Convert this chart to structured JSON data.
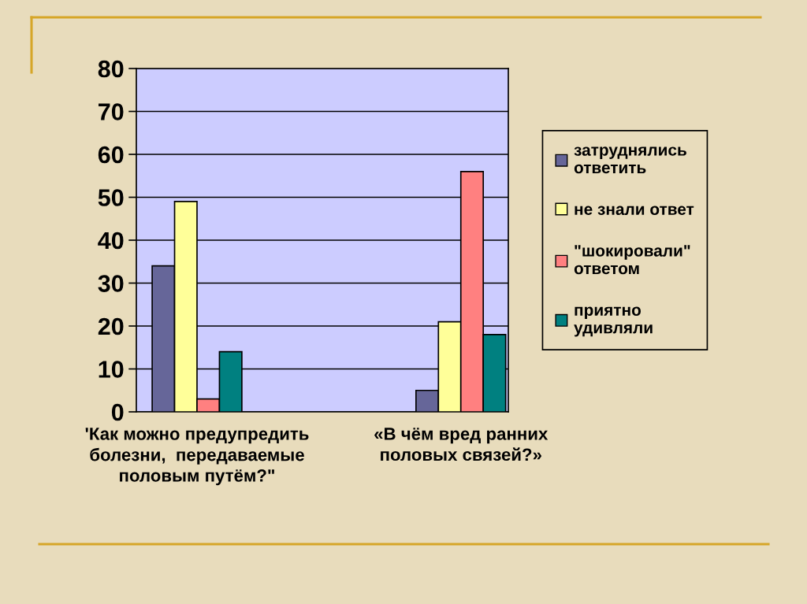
{
  "chart_data": {
    "type": "bar",
    "categories": [
      "'Как можно предупредить\nболезни,  передаваемые\nполовым путём?\"",
      "«В чём вред ранних\nполовых связей?»"
    ],
    "series": [
      {
        "name": "затруднялись\nответить",
        "color": "#666699",
        "values": [
          34,
          5
        ]
      },
      {
        "name": "не знали ответ",
        "color": "#ffff99",
        "values": [
          49,
          21
        ]
      },
      {
        "name": "\"шокировали\"\nответом",
        "color": "#ff8080",
        "values": [
          3,
          56
        ]
      },
      {
        "name": "приятно\nудивляли",
        "color": "#008080",
        "values": [
          14,
          18
        ]
      }
    ],
    "ylim": [
      0,
      80
    ],
    "yticks": [
      0,
      10,
      20,
      30,
      40,
      50,
      60,
      70,
      80
    ],
    "grid": "y",
    "legend": "right"
  }
}
